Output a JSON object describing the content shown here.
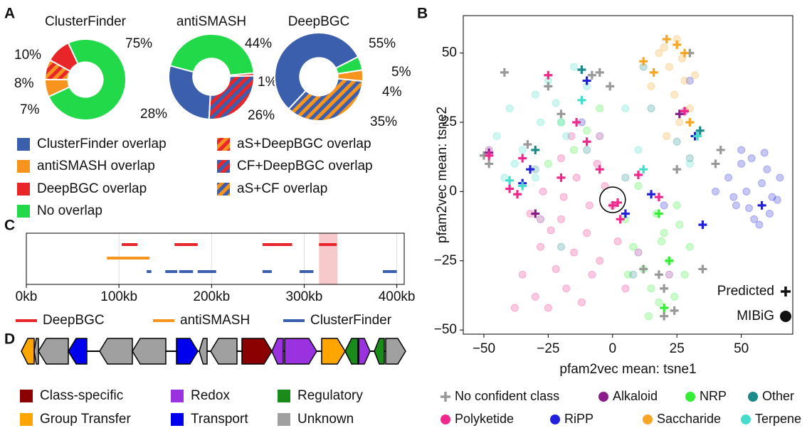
{
  "chart_data": [
    {
      "type": "donut",
      "panel": "A",
      "legend": [
        {
          "name": "ClusterFinder overlap",
          "color": "#3b5fad"
        },
        {
          "name": "antiSMASH overlap",
          "color": "#f7941d"
        },
        {
          "name": "DeepBGC overlap",
          "color": "#e8262a"
        },
        {
          "name": "No overlap",
          "color": "#22d94a"
        },
        {
          "name": "aS+DeepBGC overlap",
          "color": "#e8262a",
          "hatch_color": "#f7941d"
        },
        {
          "name": "CF+DeepBGC overlap",
          "color": "#3b5fad",
          "hatch_color": "#e8262a"
        },
        {
          "name": "aS+CF overlap",
          "color": "#3b5fad",
          "hatch_color": "#f7941d"
        }
      ],
      "pies": [
        {
          "title": "ClusterFinder",
          "categories": [
            "antiSMASH overlap",
            "aS+DeepBGC overlap",
            "DeepBGC overlap",
            "No overlap"
          ],
          "values": [
            7,
            8,
            10,
            75
          ],
          "value_labels": [
            "7%",
            "8%",
            "10%",
            "75%"
          ]
        },
        {
          "title": "antiSMASH",
          "categories": [
            "No overlap",
            "DeepBGC overlap",
            "CF+DeepBGC overlap",
            "ClusterFinder overlap"
          ],
          "values": [
            44,
            1,
            26,
            28
          ],
          "value_labels": [
            "44%",
            "1%",
            "26%",
            "28%"
          ]
        },
        {
          "title": "DeepBGC",
          "categories": [
            "ClusterFinder overlap",
            "No overlap",
            "antiSMASH overlap",
            "aS+CF overlap"
          ],
          "values": [
            55,
            5,
            4,
            35
          ],
          "value_labels": [
            "55%",
            "5%",
            "4%",
            "35%"
          ]
        }
      ]
    },
    {
      "type": "scatter",
      "panel": "B",
      "x_label": "pfam2vec mean: tsne1",
      "y_label": "pfam2vec mean: tsne2",
      "xlim": [
        -58,
        70
      ],
      "ylim": [
        -51.5,
        63.5
      ],
      "xticks": [
        {
          "value": -50,
          "label": "−50"
        },
        {
          "value": -25,
          "label": "−25"
        },
        0,
        25,
        50
      ],
      "yticks": [
        {
          "value": -50,
          "label": "−50"
        },
        {
          "value": -25,
          "label": "−25"
        },
        0,
        25,
        50
      ],
      "highlight": {
        "x": 0,
        "y": -3
      },
      "marker_legend": [
        {
          "name": "Predicted",
          "marker": "plus"
        },
        {
          "name": "MIBiG",
          "marker": "circle"
        }
      ],
      "series": [
        {
          "name": "No confident class",
          "color": "#999999",
          "x": [],
          "values": [],
          "predicted_x": [
            -50,
            -48,
            -25,
            -5,
            -1,
            -8,
            20,
            24,
            30,
            40,
            42,
            35,
            20,
            18,
            -20,
            12,
            25,
            -42,
            -33
          ],
          "predicted_values": [
            13,
            10,
            38,
            43,
            38,
            42,
            -35,
            -43,
            50,
            10,
            15,
            -28,
            -45,
            -30,
            28,
            -28,
            8,
            43,
            17
          ]
        },
        {
          "name": "Alkaloid",
          "color": "#8b1a8b",
          "x": [
            -48,
            -5,
            22,
            28,
            -28,
            10
          ],
          "values": [
            15,
            20,
            -30,
            29,
            -10,
            -22
          ],
          "predicted_x": [
            26,
            -48,
            -30
          ],
          "predicted_values": [
            28,
            14,
            -8
          ]
        },
        {
          "name": "NRP",
          "color": "#33ee33",
          "x": [
            5,
            8,
            12,
            15,
            18,
            20,
            22,
            25,
            28,
            10,
            14,
            17,
            24,
            30,
            -20,
            -15,
            -10,
            -25,
            -5,
            6,
            19,
            26
          ],
          "values": [
            -10,
            -20,
            -28,
            -35,
            -40,
            -15,
            -25,
            -5,
            -30,
            2,
            -45,
            -8,
            -38,
            -20,
            25,
            15,
            22,
            10,
            30,
            -30,
            -18,
            -12
          ],
          "predicted_x": [
            18,
            22,
            20
          ],
          "predicted_values": [
            -8,
            -25,
            -42
          ]
        },
        {
          "name": "Other",
          "color": "#1a8a8a",
          "x": [
            -10,
            5,
            15,
            30,
            -20,
            8,
            -30,
            25,
            12
          ],
          "values": [
            15,
            5,
            30,
            12,
            -20,
            -30,
            8,
            18,
            45
          ],
          "predicted_x": [
            34,
            -12,
            -30
          ],
          "predicted_values": [
            22,
            44,
            15
          ]
        },
        {
          "name": "Polyketide",
          "color": "#f0288c",
          "x": [
            -35,
            -30,
            -28,
            -25,
            -22,
            -20,
            -18,
            -15,
            -12,
            -10,
            -8,
            -5,
            -32,
            -27,
            -24,
            -19,
            -14,
            -9,
            -3,
            0,
            -38,
            -20,
            -16,
            -6,
            2,
            5
          ],
          "values": [
            -30,
            -38,
            -20,
            -42,
            -28,
            -10,
            -35,
            -22,
            -40,
            -15,
            -30,
            -25,
            -8,
            0,
            -14,
            -2,
            5,
            -5,
            2,
            -5,
            -42,
            12,
            20,
            10,
            -18,
            -35
          ],
          "predicted_x": [
            -48,
            -40,
            -37,
            -25,
            -20,
            -10,
            -5,
            0,
            3,
            2,
            -14,
            10,
            -35,
            18,
            28
          ],
          "predicted_values": [
            13,
            1,
            -1,
            42,
            5,
            18,
            8,
            -5,
            -10,
            -4,
            25,
            6,
            12,
            -2,
            29
          ]
        },
        {
          "name": "RiPP",
          "color": "#2020dd",
          "x": [
            45,
            48,
            50,
            52,
            55,
            58,
            60,
            62,
            65,
            50,
            54,
            57,
            61,
            64,
            47,
            53,
            59,
            40,
            -12,
            20,
            30
          ],
          "values": [
            5,
            -5,
            10,
            0,
            -10,
            3,
            8,
            -2,
            5,
            15,
            12,
            -12,
            -8,
            -3,
            -2,
            -6,
            14,
            0,
            25,
            -5,
            40
          ],
          "predicted_x": [
            58,
            35,
            15,
            -32,
            -35,
            -10,
            32,
            5
          ],
          "predicted_values": [
            -5,
            -12,
            -1,
            8,
            3,
            40,
            20,
            -8
          ]
        },
        {
          "name": "Saccharide",
          "color": "#f6a623",
          "x": [
            18,
            22,
            25,
            28,
            30,
            20,
            24,
            27,
            15,
            32,
            26,
            21
          ],
          "values": [
            50,
            45,
            55,
            40,
            30,
            52,
            35,
            48,
            38,
            42,
            25,
            20
          ],
          "predicted_x": [
            25,
            28,
            12,
            16,
            21,
            30
          ],
          "predicted_values": [
            53,
            50,
            47,
            43,
            55,
            25
          ]
        },
        {
          "name": "Terpene",
          "color": "#44ddcc",
          "x": [
            -45,
            -40,
            -35,
            -30,
            -25,
            -20,
            -15,
            -38,
            -28,
            -22,
            -42,
            -10,
            -30,
            -18,
            10,
            5,
            30
          ],
          "values": [
            20,
            30,
            15,
            35,
            40,
            25,
            45,
            10,
            25,
            32,
            5,
            38,
            5,
            20,
            15,
            30,
            10
          ],
          "predicted_x": [
            -40,
            -12,
            12,
            33,
            -35
          ],
          "predicted_values": [
            4,
            33,
            8,
            20,
            2
          ]
        }
      ]
    },
    {
      "type": "segments",
      "panel": "C",
      "xlim": [
        0,
        408
      ],
      "xticks": [
        {
          "value": 0,
          "label": "0kb"
        },
        {
          "value": 100,
          "label": "100kb"
        },
        {
          "value": 200,
          "label": "200kb"
        },
        {
          "value": 300,
          "label": "300kb"
        },
        {
          "value": 400,
          "label": "400kb"
        }
      ],
      "grid": true,
      "highlight": [
        316,
        336
      ],
      "series": [
        {
          "name": "DeepBGC",
          "color": "#e8262a",
          "starts": [
            103,
            160,
            255,
            316
          ],
          "ends": [
            120,
            185,
            287,
            335
          ]
        },
        {
          "name": "antiSMASH",
          "color": "#f7941d",
          "starts": [
            87
          ],
          "ends": [
            133
          ]
        },
        {
          "name": "ClusterFinder",
          "color": "#3b5fad",
          "starts": [
            130,
            150,
            165,
            185,
            255,
            295,
            385
          ],
          "ends": [
            135,
            163,
            180,
            205,
            265,
            310,
            400
          ]
        }
      ]
    },
    {
      "type": "genes",
      "panel": "D",
      "legend": [
        {
          "name": "Class-specific",
          "color": "#8b0000"
        },
        {
          "name": "Redox",
          "color": "#9a32e0"
        },
        {
          "name": "Regulatory",
          "color": "#1a8a1a"
        },
        {
          "name": "Group Transfer",
          "color": "#ffa500"
        },
        {
          "name": "Transport",
          "color": "#0000ee"
        },
        {
          "name": "Unknown",
          "color": "#a0a0a0"
        }
      ],
      "genes": [
        {
          "start": 0,
          "end": 18,
          "strand": "-",
          "class": "Group Transfer"
        },
        {
          "start": 18,
          "end": 24,
          "strand": "-",
          "class": "Unknown"
        },
        {
          "start": 24,
          "end": 66,
          "strand": "-",
          "class": "Unknown"
        },
        {
          "start": 66,
          "end": 92,
          "strand": "-",
          "class": "Transport"
        },
        {
          "start": 110,
          "end": 156,
          "strand": "-",
          "class": "Unknown"
        },
        {
          "start": 156,
          "end": 203,
          "strand": "-",
          "class": "Unknown"
        },
        {
          "start": 218,
          "end": 248,
          "strand": "+",
          "class": "Transport"
        },
        {
          "start": 250,
          "end": 261,
          "strand": "-",
          "class": "Unknown"
        },
        {
          "start": 266,
          "end": 303,
          "strand": "-",
          "class": "Unknown"
        },
        {
          "start": 310,
          "end": 352,
          "strand": "+",
          "class": "Class-specific"
        },
        {
          "start": 352,
          "end": 368,
          "strand": "-",
          "class": "Redox"
        },
        {
          "start": 370,
          "end": 415,
          "strand": "+",
          "class": "Redox"
        },
        {
          "start": 422,
          "end": 455,
          "strand": "+",
          "class": "Group Transfer"
        },
        {
          "start": 455,
          "end": 473,
          "strand": "-",
          "class": "Regulatory"
        },
        {
          "start": 474,
          "end": 490,
          "strand": "+",
          "class": "Redox"
        },
        {
          "start": 496,
          "end": 510,
          "strand": "-",
          "class": "Regulatory"
        },
        {
          "start": 512,
          "end": 540,
          "strand": "+",
          "class": "Unknown"
        }
      ]
    }
  ]
}
